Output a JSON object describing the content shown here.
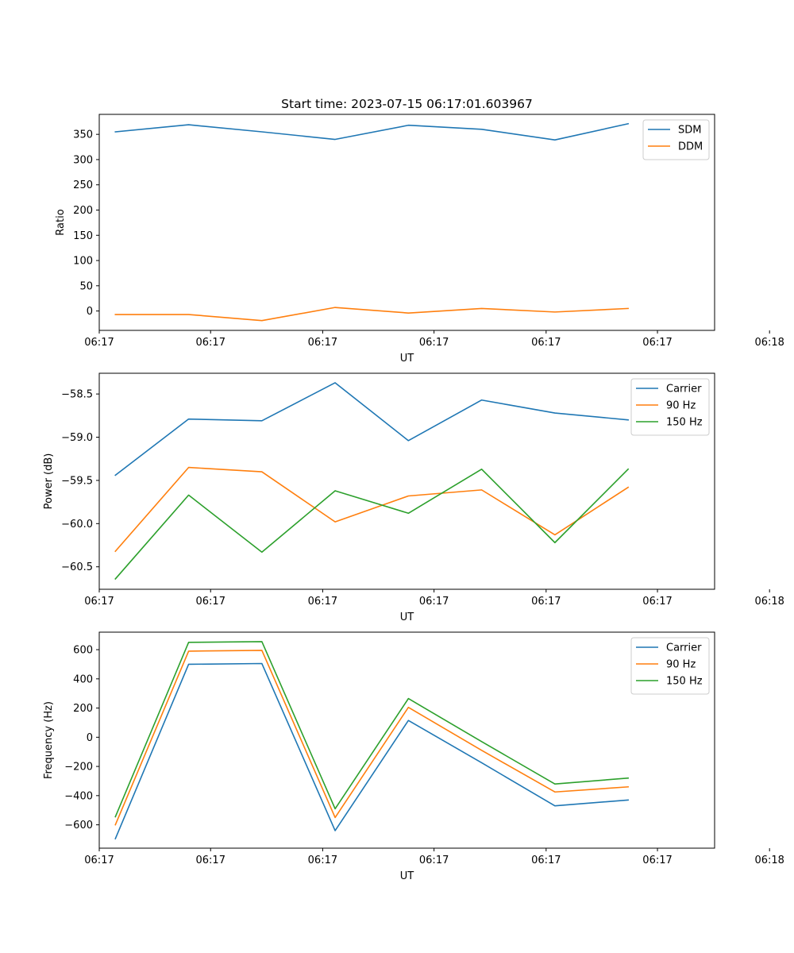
{
  "figure": {
    "title": "Start time: 2023-07-15 06:17:01.603967"
  },
  "chart_data": [
    {
      "type": "line",
      "xlabel": "UT",
      "ylabel": "Ratio",
      "x": [
        1,
        2,
        3,
        4,
        5,
        6,
        7,
        8
      ],
      "xlim": [
        0.78,
        9.18
      ],
      "x_ticks": [
        0.78,
        2.3,
        3.83,
        5.35,
        6.88,
        8.4,
        9.93
      ],
      "x_tick_labels": [
        "06:17",
        "06:17",
        "06:17",
        "06:17",
        "06:17",
        "06:17",
        "06:18"
      ],
      "ylim": [
        -38.4,
        389.6
      ],
      "y_ticks": [
        0,
        50,
        100,
        150,
        200,
        250,
        300,
        350
      ],
      "y_tick_labels": [
        "0",
        "50",
        "100",
        "150",
        "200",
        "250",
        "300",
        "350"
      ],
      "legend": "top-right",
      "series": [
        {
          "name": "SDM",
          "color": "#1f77b4",
          "values": [
            355,
            369,
            355,
            340,
            368,
            360,
            339,
            371
          ]
        },
        {
          "name": "DDM",
          "color": "#ff7f0e",
          "values": [
            -7,
            -7,
            -19,
            7,
            -4,
            5,
            -2,
            5
          ]
        }
      ]
    },
    {
      "type": "line",
      "xlabel": "UT",
      "ylabel": "Power (dB)",
      "x": [
        1,
        2,
        3,
        4,
        5,
        6,
        7,
        8
      ],
      "xlim": [
        0.78,
        9.18
      ],
      "x_ticks": [
        0.78,
        2.3,
        3.83,
        5.35,
        6.88,
        8.4,
        9.93
      ],
      "x_tick_labels": [
        "06:17",
        "06:17",
        "06:17",
        "06:17",
        "06:17",
        "06:17",
        "06:18"
      ],
      "ylim": [
        -60.76,
        -58.26
      ],
      "y_ticks": [
        -60.5,
        -60.0,
        -59.5,
        -59.0,
        -58.5
      ],
      "y_tick_labels": [
        "−60.5",
        "−60.0",
        "−59.5",
        "−59.0",
        "−58.5"
      ],
      "legend": "top-right",
      "series": [
        {
          "name": "Carrier",
          "color": "#1f77b4",
          "values": [
            -59.44,
            -58.79,
            -58.81,
            -58.37,
            -59.04,
            -58.57,
            -58.72,
            -58.8
          ]
        },
        {
          "name": "90 Hz",
          "color": "#ff7f0e",
          "values": [
            -60.32,
            -59.35,
            -59.4,
            -59.98,
            -59.68,
            -59.61,
            -60.13,
            -59.58
          ]
        },
        {
          "name": "150 Hz",
          "color": "#2ca02c",
          "values": [
            -60.64,
            -59.67,
            -60.33,
            -59.62,
            -59.88,
            -59.37,
            -60.22,
            -59.37
          ]
        }
      ]
    },
    {
      "type": "line",
      "xlabel": "UT",
      "ylabel": "Frequency (Hz)",
      "x": [
        1,
        2,
        3,
        4,
        5,
        6,
        7,
        8
      ],
      "xlim": [
        0.78,
        9.18
      ],
      "x_ticks": [
        0.78,
        2.3,
        3.83,
        5.35,
        6.88,
        8.4,
        9.93
      ],
      "x_tick_labels": [
        "06:17",
        "06:17",
        "06:17",
        "06:17",
        "06:17",
        "06:17",
        "06:18"
      ],
      "ylim": [
        -760,
        720
      ],
      "y_ticks": [
        -600,
        -400,
        -200,
        0,
        200,
        400,
        600
      ],
      "y_tick_labels": [
        "−600",
        "−400",
        "−200",
        "0",
        "200",
        "400",
        "600"
      ],
      "legend": "top-right",
      "series": [
        {
          "name": "Carrier",
          "color": "#1f77b4",
          "values": [
            -695,
            500,
            505,
            -640,
            115,
            -175,
            -470,
            -430
          ]
        },
        {
          "name": "90 Hz",
          "color": "#ff7f0e",
          "values": [
            -600,
            590,
            595,
            -550,
            205,
            -90,
            -375,
            -340
          ]
        },
        {
          "name": "150 Hz",
          "color": "#2ca02c",
          "values": [
            -545,
            650,
            655,
            -490,
            265,
            -30,
            -320,
            -280
          ]
        }
      ]
    }
  ]
}
